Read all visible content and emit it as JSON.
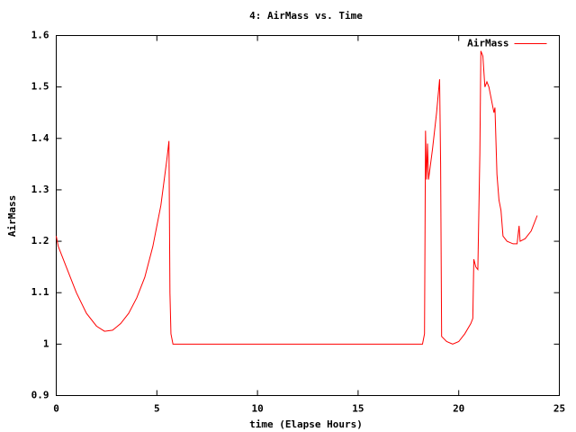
{
  "chart_data": {
    "type": "line",
    "title": "4: AirMass vs. Time",
    "x_label": "time (Elapse Hours)",
    "y_label": "AirMass",
    "x": [
      0,
      0.1,
      0.5,
      1.0,
      1.5,
      2.0,
      2.4,
      2.8,
      3.2,
      3.6,
      4.0,
      4.4,
      4.8,
      5.2,
      5.5,
      5.6,
      5.65,
      5.7,
      5.8,
      18.2,
      18.3,
      18.35,
      18.4,
      18.45,
      18.5,
      18.7,
      18.9,
      19.05,
      19.1,
      19.15,
      19.4,
      19.7,
      20.0,
      20.3,
      20.6,
      20.7,
      20.75,
      20.85,
      20.95,
      21.05,
      21.1,
      21.2,
      21.3,
      21.4,
      21.5,
      21.6,
      21.75,
      21.8,
      21.9,
      22.0,
      22.1,
      22.2,
      22.4,
      22.7,
      22.9,
      23.0,
      23.05,
      23.3,
      23.6,
      23.9
    ],
    "series": [
      {
        "name": "AirMass",
        "color": "#ff0000",
        "values": [
          1.21,
          1.19,
          1.15,
          1.1,
          1.06,
          1.035,
          1.025,
          1.027,
          1.04,
          1.06,
          1.09,
          1.13,
          1.19,
          1.27,
          1.36,
          1.395,
          1.1,
          1.02,
          1.0,
          1.0,
          1.02,
          1.415,
          1.32,
          1.39,
          1.32,
          1.38,
          1.45,
          1.515,
          1.35,
          1.015,
          1.005,
          1.0,
          1.005,
          1.02,
          1.04,
          1.05,
          1.165,
          1.15,
          1.145,
          1.37,
          1.57,
          1.56,
          1.5,
          1.51,
          1.5,
          1.48,
          1.45,
          1.46,
          1.33,
          1.28,
          1.26,
          1.21,
          1.2,
          1.195,
          1.195,
          1.23,
          1.2,
          1.205,
          1.22,
          1.25
        ]
      }
    ],
    "xlim": [
      0,
      25
    ],
    "xticks": [
      0,
      5,
      10,
      15,
      20,
      25
    ],
    "ylim": [
      0.9,
      1.6
    ],
    "yticks": [
      0.9,
      1,
      1.1,
      1.2,
      1.3,
      1.4,
      1.5,
      1.6
    ],
    "legend": "upper right"
  }
}
